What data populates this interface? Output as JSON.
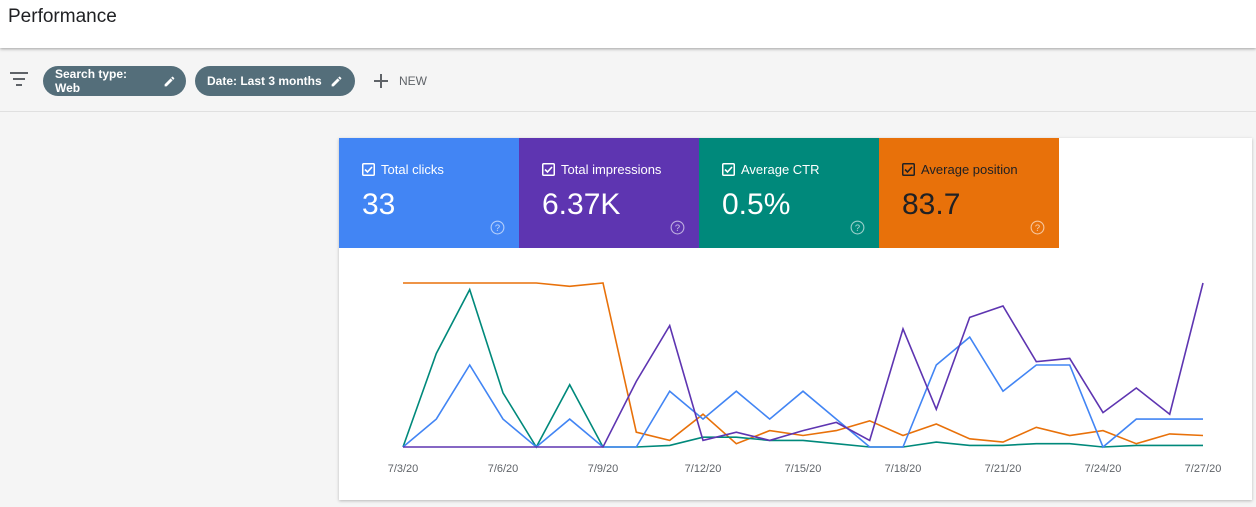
{
  "header": {
    "title": "Performance"
  },
  "filters": {
    "chips": [
      {
        "label": "Search type: Web",
        "icon": "pencil-icon"
      },
      {
        "label": "Date: Last 3 months",
        "icon": "pencil-icon"
      }
    ],
    "new_label": "NEW"
  },
  "metrics": [
    {
      "label": "Total clicks",
      "value": "33",
      "color": "#4285f4"
    },
    {
      "label": "Total impressions",
      "value": "6.37K",
      "color": "#5e35b1"
    },
    {
      "label": "Average CTR",
      "value": "0.5%",
      "color": "#00897b"
    },
    {
      "label": "Average position",
      "value": "83.7",
      "color": "#e8710a"
    }
  ],
  "chart_data": {
    "type": "line",
    "axis_labels_shown": false,
    "x": [
      "7/3/20",
      "7/4/20",
      "7/5/20",
      "7/6/20",
      "7/7/20",
      "7/8/20",
      "7/9/20",
      "7/10/20",
      "7/11/20",
      "7/12/20",
      "7/13/20",
      "7/14/20",
      "7/15/20",
      "7/16/20",
      "7/17/20",
      "7/18/20",
      "7/19/20",
      "7/20/20",
      "7/21/20",
      "7/22/20",
      "7/23/20",
      "7/24/20",
      "7/25/20",
      "7/26/20",
      "7/27/20"
    ],
    "x_tick_labels": [
      "7/3/20",
      "7/6/20",
      "7/9/20",
      "7/12/20",
      "7/15/20",
      "7/18/20",
      "7/21/20",
      "7/24/20",
      "7/27/20"
    ],
    "x_tick_indices": [
      0,
      3,
      6,
      9,
      12,
      15,
      18,
      21,
      24
    ],
    "normalized_range": [
      0,
      100
    ],
    "series": [
      {
        "name": "Total clicks",
        "color": "#4285f4",
        "values": [
          0,
          17,
          50,
          17,
          0,
          17,
          0,
          0,
          34,
          17,
          34,
          17,
          34,
          17,
          0,
          0,
          50,
          67,
          34,
          50,
          50,
          0,
          17,
          17,
          17
        ]
      },
      {
        "name": "Total impressions",
        "color": "#5e35b1",
        "values": [
          0,
          0,
          0,
          0,
          0,
          0,
          0,
          40,
          74,
          4,
          9,
          4,
          10,
          15,
          4,
          72,
          23,
          79,
          86,
          52,
          54,
          21,
          36,
          20,
          100
        ]
      },
      {
        "name": "Average CTR",
        "color": "#00897b",
        "values": [
          0,
          57,
          96,
          33,
          0,
          38,
          0,
          0,
          1,
          6,
          6,
          4,
          4,
          2,
          0,
          0,
          3,
          1,
          1,
          2,
          2,
          0,
          1,
          1,
          1
        ]
      },
      {
        "name": "Average position",
        "color": "#e8710a",
        "values": [
          100,
          100,
          100,
          100,
          100,
          98,
          100,
          9,
          4,
          20,
          2,
          10,
          7,
          10,
          16,
          7,
          14,
          5,
          3,
          12,
          7,
          10,
          2,
          8,
          7
        ]
      }
    ]
  }
}
